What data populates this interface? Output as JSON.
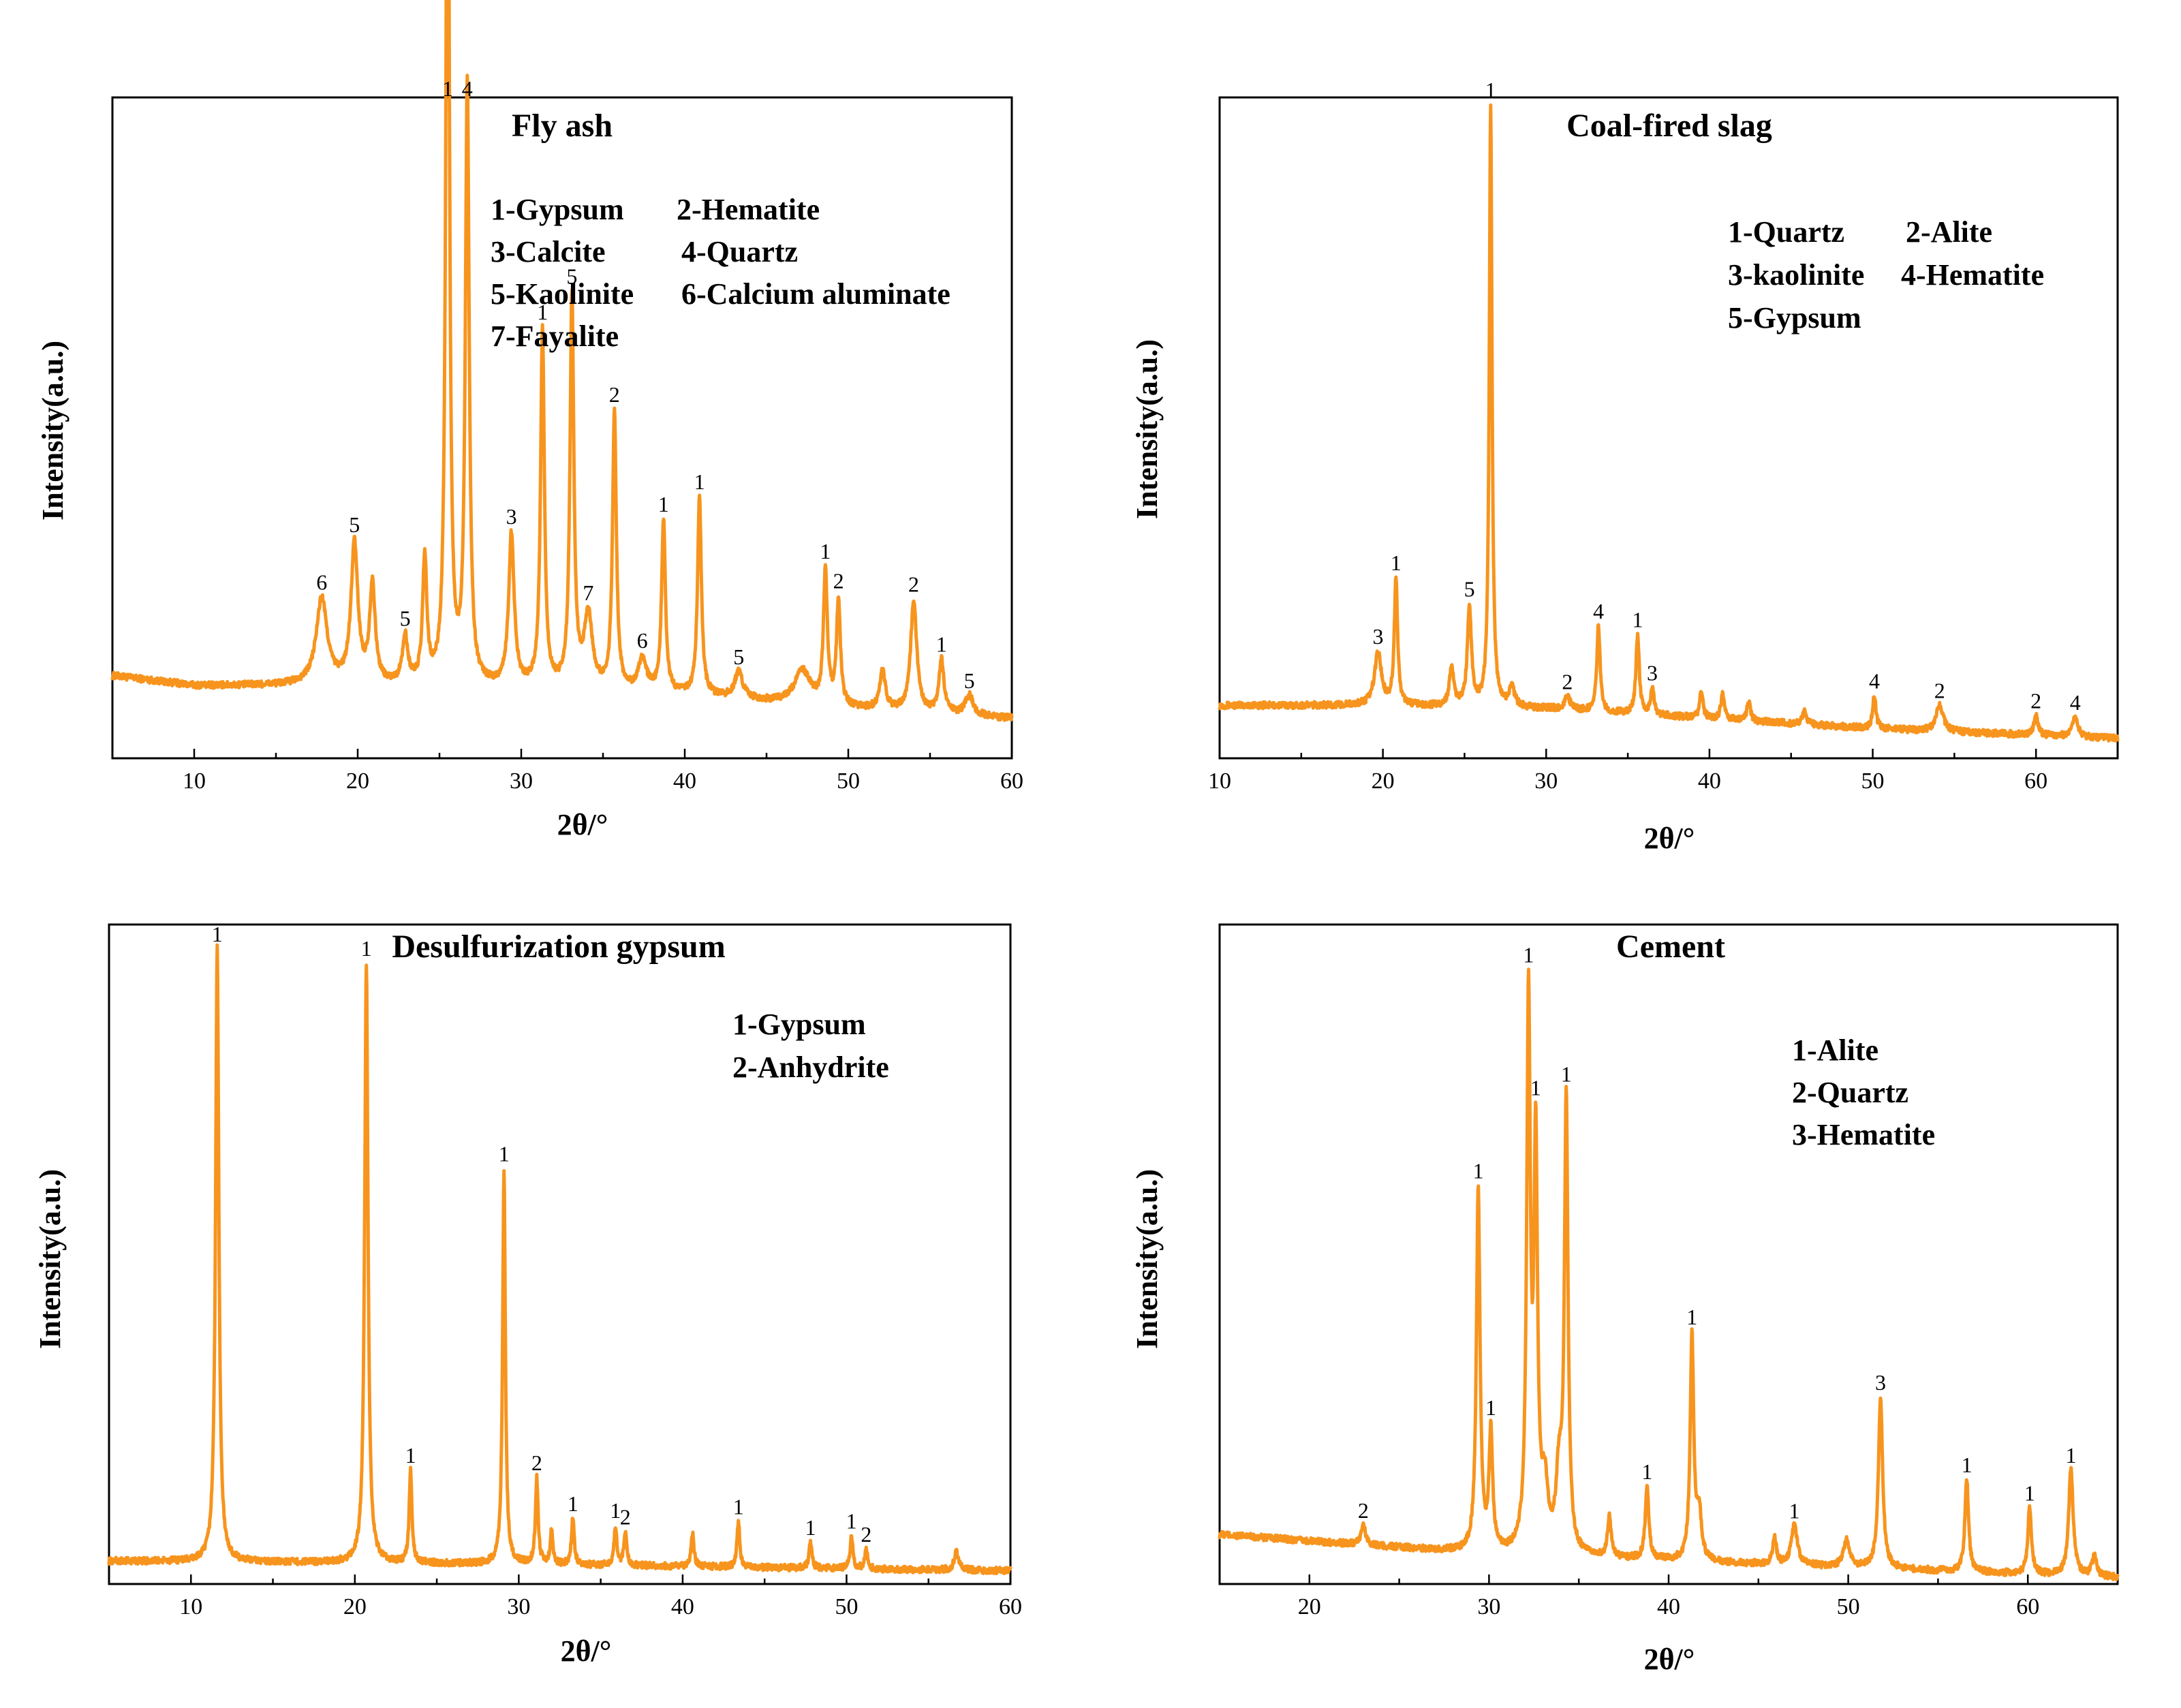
{
  "colors": {
    "trace": "#f7941d",
    "axis": "#000000",
    "background": "#ffffff"
  },
  "chart_data": [
    {
      "type": "line",
      "title": "Fly ash",
      "xlabel": "2θ/°",
      "ylabel": "Intensity(a.u.)",
      "xlim": [
        5,
        60
      ],
      "ylim": [
        0,
        100
      ],
      "xticks": [
        10,
        20,
        30,
        40,
        50,
        60
      ],
      "legend": [
        "1-Gypsum",
        "2-Hematite",
        "3-Calcite",
        "4-Quartz",
        "5-Kaolinite",
        "6-Calcium aluminate",
        "7-Fayalite"
      ],
      "legend_placement": "top-center",
      "baseline": [
        [
          5,
          12.5
        ],
        [
          10,
          11
        ],
        [
          20,
          11
        ],
        [
          30,
          10.5
        ],
        [
          40,
          9.5
        ],
        [
          50,
          7.5
        ],
        [
          60,
          6
        ]
      ],
      "peaks": [
        {
          "x": 17.8,
          "h": 13,
          "w": 0.4,
          "label": "6"
        },
        {
          "x": 19.8,
          "h": 21,
          "w": 0.25,
          "label": "5"
        },
        {
          "x": 20.9,
          "h": 15,
          "w": 0.2,
          "label": ""
        },
        {
          "x": 22.9,
          "h": 7,
          "w": 0.2,
          "label": "5"
        },
        {
          "x": 24.1,
          "h": 19,
          "w": 0.15,
          "label": ""
        },
        {
          "x": 25.5,
          "h": 159,
          "w": 0.12,
          "label": "1"
        },
        {
          "x": 26.7,
          "h": 91,
          "w": 0.14,
          "label": "4"
        },
        {
          "x": 29.4,
          "h": 23,
          "w": 0.2,
          "label": "3"
        },
        {
          "x": 31.3,
          "h": 54,
          "w": 0.14,
          "label": "1"
        },
        {
          "x": 33.1,
          "h": 59,
          "w": 0.14,
          "label": "5"
        },
        {
          "x": 34.1,
          "h": 11,
          "w": 0.3,
          "label": "7"
        },
        {
          "x": 35.7,
          "h": 42,
          "w": 0.14,
          "label": "2"
        },
        {
          "x": 37.4,
          "h": 5,
          "w": 0.3,
          "label": "6"
        },
        {
          "x": 38.7,
          "h": 26,
          "w": 0.14,
          "label": "1"
        },
        {
          "x": 40.9,
          "h": 30,
          "w": 0.14,
          "label": "1"
        },
        {
          "x": 43.3,
          "h": 4,
          "w": 0.3,
          "label": "5"
        },
        {
          "x": 47.2,
          "h": 5,
          "w": 0.6,
          "label": ""
        },
        {
          "x": 48.6,
          "h": 20,
          "w": 0.14,
          "label": "1"
        },
        {
          "x": 49.4,
          "h": 16,
          "w": 0.14,
          "label": "2"
        },
        {
          "x": 52.1,
          "h": 6,
          "w": 0.2,
          "label": ""
        },
        {
          "x": 54.0,
          "h": 17,
          "w": 0.22,
          "label": "2"
        },
        {
          "x": 55.7,
          "h": 8,
          "w": 0.18,
          "label": "1"
        },
        {
          "x": 57.4,
          "h": 3,
          "w": 0.3,
          "label": "5"
        }
      ]
    },
    {
      "type": "line",
      "title": "Coal-fired slag",
      "xlabel": "2θ/°",
      "ylabel": "Intensity(a.u.)",
      "xlim": [
        10,
        65
      ],
      "ylim": [
        0,
        100
      ],
      "xticks": [
        10,
        20,
        30,
        40,
        50,
        60
      ],
      "legend": [
        "1-Quartz",
        "2-Alite",
        "3-kaolinite",
        "4-Hematite",
        "5-Gypsum"
      ],
      "legend_placement": "top-right",
      "baseline": [
        [
          10,
          8
        ],
        [
          20,
          8
        ],
        [
          30,
          7.5
        ],
        [
          40,
          6
        ],
        [
          50,
          4.5
        ],
        [
          60,
          3.5
        ],
        [
          65,
          3
        ]
      ],
      "peaks": [
        {
          "x": 19.7,
          "h": 8,
          "w": 0.25,
          "label": "3"
        },
        {
          "x": 20.8,
          "h": 19,
          "w": 0.12,
          "label": "1"
        },
        {
          "x": 24.2,
          "h": 6,
          "w": 0.15,
          "label": ""
        },
        {
          "x": 25.3,
          "h": 15,
          "w": 0.15,
          "label": "5"
        },
        {
          "x": 26.6,
          "h": 91,
          "w": 0.1,
          "label": "1"
        },
        {
          "x": 27.9,
          "h": 3,
          "w": 0.2,
          "label": ""
        },
        {
          "x": 31.3,
          "h": 2,
          "w": 0.2,
          "label": "2"
        },
        {
          "x": 33.2,
          "h": 13,
          "w": 0.12,
          "label": "4"
        },
        {
          "x": 35.6,
          "h": 12,
          "w": 0.12,
          "label": "1"
        },
        {
          "x": 36.5,
          "h": 4,
          "w": 0.12,
          "label": "3"
        },
        {
          "x": 39.5,
          "h": 4,
          "w": 0.12,
          "label": ""
        },
        {
          "x": 40.8,
          "h": 4,
          "w": 0.12,
          "label": ""
        },
        {
          "x": 42.4,
          "h": 3,
          "w": 0.12,
          "label": ""
        },
        {
          "x": 45.8,
          "h": 2,
          "w": 0.15,
          "label": ""
        },
        {
          "x": 50.1,
          "h": 5,
          "w": 0.12,
          "label": "4"
        },
        {
          "x": 54.1,
          "h": 4,
          "w": 0.25,
          "label": "2"
        },
        {
          "x": 60.0,
          "h": 3,
          "w": 0.15,
          "label": "2"
        },
        {
          "x": 62.4,
          "h": 3,
          "w": 0.2,
          "label": "4"
        }
      ]
    },
    {
      "type": "line",
      "title": "Desulfurization gypsum",
      "xlabel": "2θ/°",
      "ylabel": "Intensity(a.u.)",
      "xlim": [
        5,
        60
      ],
      "ylim": [
        0,
        100
      ],
      "xticks": [
        10,
        20,
        30,
        40,
        50,
        60
      ],
      "legend": [
        "1-Gypsum",
        "2-Anhydrite"
      ],
      "legend_placement": "top-right",
      "baseline": [
        [
          5,
          3.5
        ],
        [
          30,
          3
        ],
        [
          60,
          2
        ]
      ],
      "peaks": [
        {
          "x": 11.6,
          "h": 93,
          "w": 0.12,
          "label": "1"
        },
        {
          "x": 20.7,
          "h": 91,
          "w": 0.12,
          "label": "1"
        },
        {
          "x": 23.4,
          "h": 14,
          "w": 0.1,
          "label": "1"
        },
        {
          "x": 29.1,
          "h": 60,
          "w": 0.1,
          "label": "1"
        },
        {
          "x": 31.1,
          "h": 13,
          "w": 0.1,
          "label": "2"
        },
        {
          "x": 32.0,
          "h": 5,
          "w": 0.1,
          "label": ""
        },
        {
          "x": 33.3,
          "h": 7,
          "w": 0.1,
          "label": "1"
        },
        {
          "x": 35.9,
          "h": 6,
          "w": 0.1,
          "label": "1"
        },
        {
          "x": 36.5,
          "h": 5,
          "w": 0.1,
          "label": "2"
        },
        {
          "x": 40.6,
          "h": 5,
          "w": 0.1,
          "label": ""
        },
        {
          "x": 43.4,
          "h": 7,
          "w": 0.1,
          "label": "1"
        },
        {
          "x": 47.8,
          "h": 4,
          "w": 0.1,
          "label": "1"
        },
        {
          "x": 50.3,
          "h": 5,
          "w": 0.1,
          "label": "1"
        },
        {
          "x": 51.2,
          "h": 3,
          "w": 0.1,
          "label": "2"
        },
        {
          "x": 56.7,
          "h": 3,
          "w": 0.15,
          "label": ""
        }
      ]
    },
    {
      "type": "line",
      "title": "Cement",
      "xlabel": "2θ/°",
      "ylabel": "Intensity(a.u.)",
      "xlim": [
        15,
        65
      ],
      "ylim": [
        0,
        100
      ],
      "xticks": [
        20,
        30,
        40,
        50,
        60
      ],
      "legend": [
        "1-Alite",
        "2-Quartz",
        "3-Hematite"
      ],
      "legend_placement": "top-right",
      "baseline": [
        [
          15,
          7.5
        ],
        [
          30,
          4.5
        ],
        [
          40,
          3.5
        ],
        [
          50,
          2.5
        ],
        [
          65,
          1
        ]
      ],
      "peaks": [
        {
          "x": 23.0,
          "h": 3,
          "w": 0.15,
          "label": "2"
        },
        {
          "x": 29.4,
          "h": 55,
          "w": 0.12,
          "label": "1"
        },
        {
          "x": 30.1,
          "h": 18,
          "w": 0.12,
          "label": "1"
        },
        {
          "x": 32.2,
          "h": 83,
          "w": 0.12,
          "label": "1"
        },
        {
          "x": 32.6,
          "h": 60,
          "w": 0.12,
          "label": "1"
        },
        {
          "x": 33.1,
          "h": 9,
          "w": 0.2,
          "label": ""
        },
        {
          "x": 33.9,
          "h": 11,
          "w": 0.2,
          "label": ""
        },
        {
          "x": 34.3,
          "h": 68,
          "w": 0.12,
          "label": "1"
        },
        {
          "x": 36.7,
          "h": 6,
          "w": 0.12,
          "label": ""
        },
        {
          "x": 38.8,
          "h": 11,
          "w": 0.12,
          "label": "1"
        },
        {
          "x": 41.3,
          "h": 34,
          "w": 0.12,
          "label": "1"
        },
        {
          "x": 41.7,
          "h": 7,
          "w": 0.15,
          "label": ""
        },
        {
          "x": 45.9,
          "h": 4,
          "w": 0.12,
          "label": ""
        },
        {
          "x": 47.0,
          "h": 6,
          "w": 0.2,
          "label": "1"
        },
        {
          "x": 49.9,
          "h": 4,
          "w": 0.2,
          "label": ""
        },
        {
          "x": 51.8,
          "h": 26,
          "w": 0.14,
          "label": "3"
        },
        {
          "x": 56.6,
          "h": 14,
          "w": 0.12,
          "label": "1"
        },
        {
          "x": 60.1,
          "h": 10,
          "w": 0.12,
          "label": "1"
        },
        {
          "x": 62.4,
          "h": 16,
          "w": 0.15,
          "label": "1"
        },
        {
          "x": 63.7,
          "h": 3,
          "w": 0.15,
          "label": ""
        }
      ]
    }
  ]
}
